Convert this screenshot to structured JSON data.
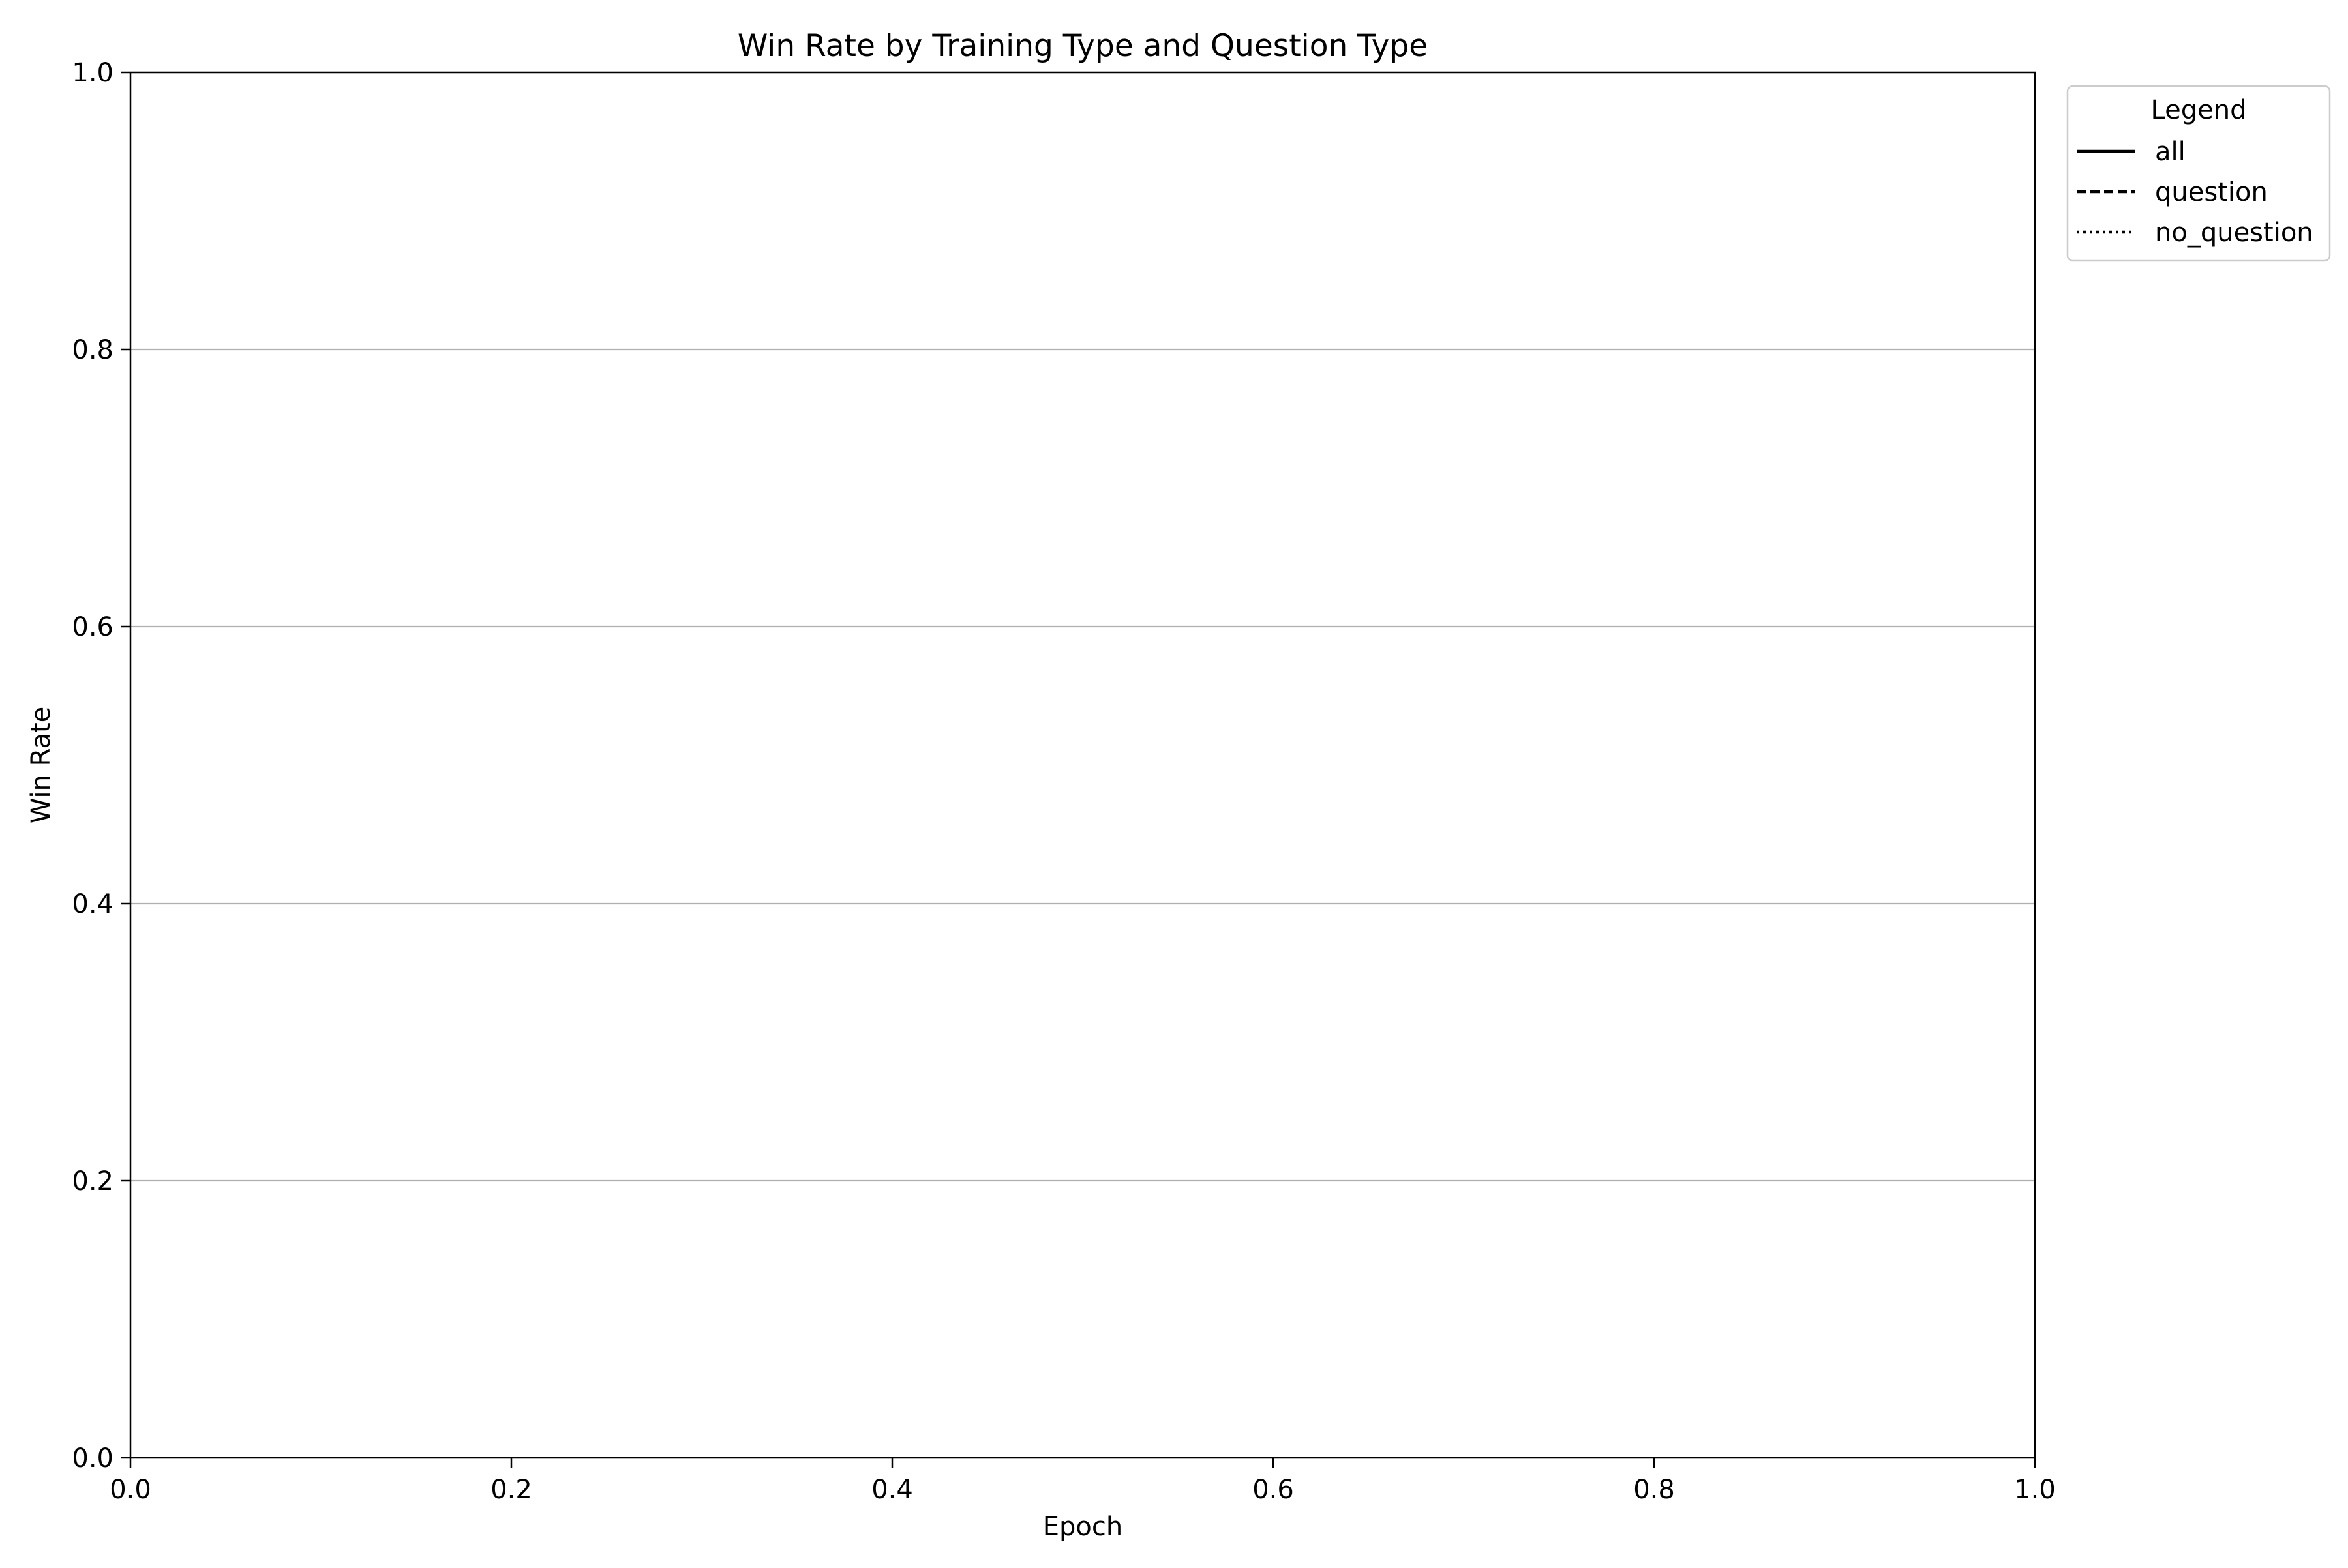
{
  "chart_data": {
    "type": "line",
    "title": "Win Rate by Training Type and Question Type",
    "xlabel": "Epoch",
    "ylabel": "Win Rate",
    "xlim": [
      0.0,
      1.0
    ],
    "ylim": [
      0.0,
      1.0
    ],
    "xticks": [
      "0.0",
      "0.2",
      "0.4",
      "0.6",
      "0.8",
      "1.0"
    ],
    "yticks": [
      "0.0",
      "0.2",
      "0.4",
      "0.6",
      "0.8",
      "1.0"
    ],
    "grid": "y",
    "legend": {
      "title": "Legend",
      "placement": "outside-top-right",
      "entries": [
        {
          "label": "all",
          "line_style": "solid"
        },
        {
          "label": "question",
          "line_style": "dashed"
        },
        {
          "label": "no_question",
          "line_style": "dotted"
        }
      ]
    },
    "series": [],
    "colors": {
      "axis": "#000000",
      "grid": "#b0b0b0",
      "background": "#ffffff"
    }
  }
}
